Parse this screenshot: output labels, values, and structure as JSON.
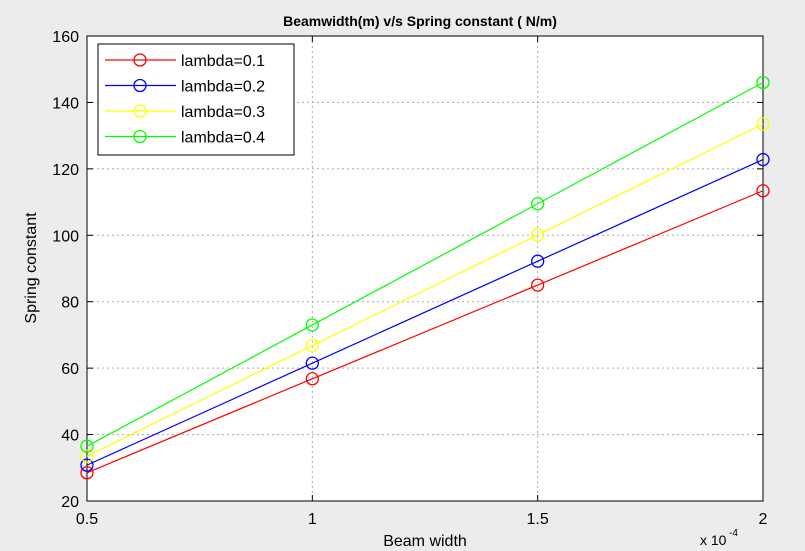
{
  "chart_data": {
    "type": "line",
    "title": "Beamwidth(m) v/s Spring constant ( N/m)",
    "xlabel": "Beam width",
    "ylabel": "Spring constant",
    "x_exponent_base": "x 10",
    "x_exponent_power": "-4",
    "x": [
      0.5,
      1,
      1.5,
      2
    ],
    "xticks": [
      "0.5",
      "1",
      "1.5",
      "2"
    ],
    "xlim": [
      0.5,
      2
    ],
    "yticks": [
      "20",
      "40",
      "60",
      "80",
      "100",
      "120",
      "140",
      "160"
    ],
    "ylim": [
      20,
      160
    ],
    "legend_position": "top-left",
    "series": [
      {
        "name": "lambda=0.1",
        "color": "#ff0000",
        "values": [
          28.5,
          56.8,
          85.0,
          113.4
        ]
      },
      {
        "name": "lambda=0.2",
        "color": "#0000ff",
        "values": [
          30.8,
          61.5,
          92.2,
          122.8
        ]
      },
      {
        "name": "lambda=0.3",
        "color": "#ffff00",
        "values": [
          33.5,
          66.8,
          100.1,
          133.5
        ]
      },
      {
        "name": "lambda=0.4",
        "color": "#00ff00",
        "values": [
          36.5,
          73.0,
          109.5,
          146.0
        ]
      }
    ]
  }
}
